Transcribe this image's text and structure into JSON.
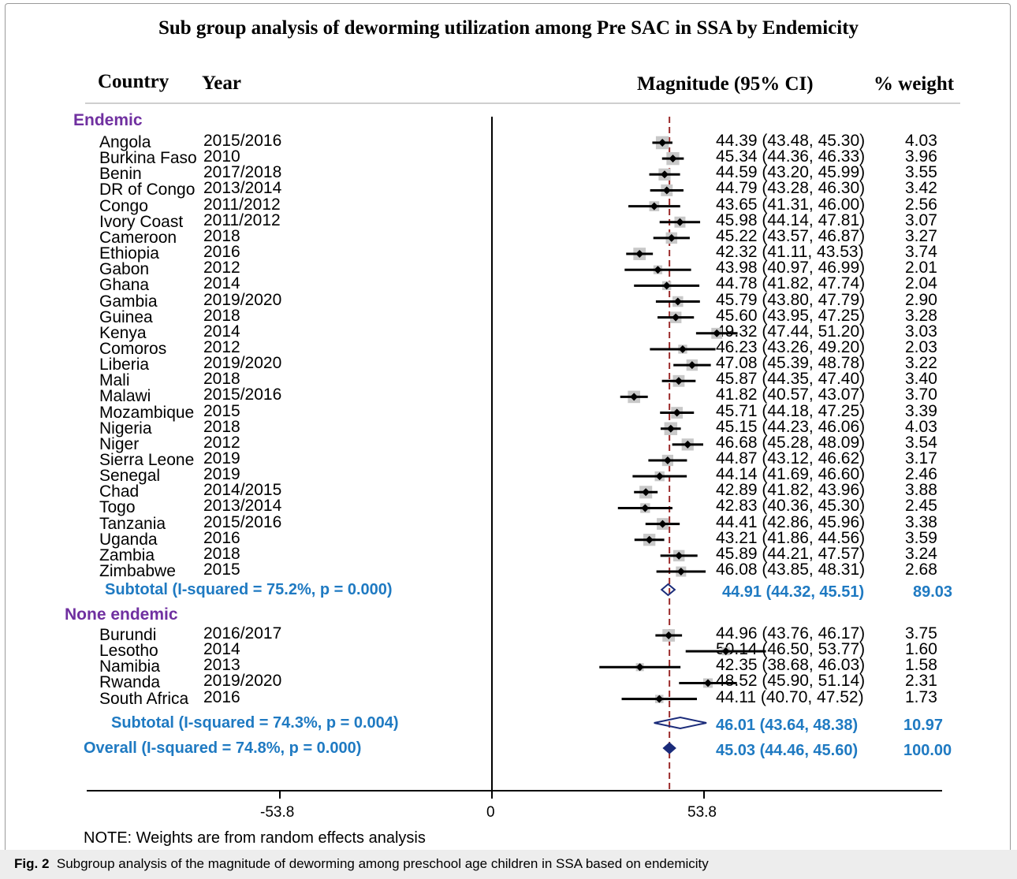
{
  "figure": {
    "title": "Sub group analysis of deworming utilization among Pre SAC in SSA by Endemicity",
    "headers": {
      "country": "Country",
      "year": "Year",
      "effect": "Magnitude (95% CI)",
      "weight": "% weight"
    },
    "note": "NOTE: Weights are from random effects analysis",
    "caption_label": "Fig. 2",
    "caption_text": "Subgroup analysis of the magnitude of deworming among preschool age children in SSA based on endemicity",
    "x_ticks": [
      "-53.8",
      "0",
      "53.8"
    ],
    "overall_label": "Overall  (I-squared = 74.8%, p = 0.000)",
    "overall_ci": "45.03 (44.46, 45.60)",
    "overall_weight": "100.00"
  },
  "chart_data": {
    "type": "forest",
    "xlim": [
      -110,
      110
    ],
    "reference_line": 0,
    "pooled_line": 45.03,
    "groups": [
      {
        "name": "Endemic",
        "studies": [
          {
            "country": "Angola",
            "year": "2015/2016",
            "est": 44.39,
            "lo": 43.48,
            "hi": 45.3,
            "ci": "44.39 (43.48, 45.30)",
            "weight": "4.03"
          },
          {
            "country": "Burkina Faso",
            "year": "2010",
            "est": 45.34,
            "lo": 44.36,
            "hi": 46.33,
            "ci": "45.34 (44.36, 46.33)",
            "weight": "3.96"
          },
          {
            "country": "Benin",
            "year": "2017/2018",
            "est": 44.59,
            "lo": 43.2,
            "hi": 45.99,
            "ci": "44.59 (43.20, 45.99)",
            "weight": "3.55"
          },
          {
            "country": "DR of Congo",
            "year": "2013/2014",
            "est": 44.79,
            "lo": 43.28,
            "hi": 46.3,
            "ci": "44.79 (43.28, 46.30)",
            "weight": "3.42"
          },
          {
            "country": "Congo",
            "year": "2011/2012",
            "est": 43.65,
            "lo": 41.31,
            "hi": 46.0,
            "ci": "43.65 (41.31, 46.00)",
            "weight": "2.56"
          },
          {
            "country": "Ivory Coast",
            "year": "2011/2012",
            "est": 45.98,
            "lo": 44.14,
            "hi": 47.81,
            "ci": "45.98 (44.14, 47.81)",
            "weight": "3.07"
          },
          {
            "country": "Cameroon",
            "year": "2018",
            "est": 45.22,
            "lo": 43.57,
            "hi": 46.87,
            "ci": "45.22 (43.57, 46.87)",
            "weight": "3.27"
          },
          {
            "country": "Ethiopia",
            "year": "2016",
            "est": 42.32,
            "lo": 41.11,
            "hi": 43.53,
            "ci": "42.32 (41.11, 43.53)",
            "weight": "3.74"
          },
          {
            "country": "Gabon",
            "year": "2012",
            "est": 43.98,
            "lo": 40.97,
            "hi": 46.99,
            "ci": "43.98 (40.97, 46.99)",
            "weight": "2.01"
          },
          {
            "country": "Ghana",
            "year": "2014",
            "est": 44.78,
            "lo": 41.82,
            "hi": 47.74,
            "ci": "44.78 (41.82, 47.74)",
            "weight": "2.04"
          },
          {
            "country": "Gambia",
            "year": "2019/2020",
            "est": 45.79,
            "lo": 43.8,
            "hi": 47.79,
            "ci": "45.79 (43.80, 47.79)",
            "weight": "2.90"
          },
          {
            "country": "Guinea",
            "year": "2018",
            "est": 45.6,
            "lo": 43.95,
            "hi": 47.25,
            "ci": "45.60 (43.95, 47.25)",
            "weight": "3.28"
          },
          {
            "country": "Kenya",
            "year": "2014",
            "est": 49.32,
            "lo": 47.44,
            "hi": 51.2,
            "ci": "49.32 (47.44, 51.20)",
            "weight": "3.03"
          },
          {
            "country": "Comoros",
            "year": "2012",
            "est": 46.23,
            "lo": 43.26,
            "hi": 49.2,
            "ci": "46.23 (43.26, 49.20)",
            "weight": "2.03"
          },
          {
            "country": "Liberia",
            "year": "2019/2020",
            "est": 47.08,
            "lo": 45.39,
            "hi": 48.78,
            "ci": "47.08 (45.39, 48.78)",
            "weight": "3.22"
          },
          {
            "country": "Mali",
            "year": "2018",
            "est": 45.87,
            "lo": 44.35,
            "hi": 47.4,
            "ci": "45.87 (44.35, 47.40)",
            "weight": "3.40"
          },
          {
            "country": "Malawi",
            "year": "2015/2016",
            "est": 41.82,
            "lo": 40.57,
            "hi": 43.07,
            "ci": "41.82 (40.57, 43.07)",
            "weight": "3.70"
          },
          {
            "country": "Mozambique",
            "year": "2015",
            "est": 45.71,
            "lo": 44.18,
            "hi": 47.25,
            "ci": "45.71 (44.18, 47.25)",
            "weight": "3.39"
          },
          {
            "country": "Nigeria",
            "year": "2018",
            "est": 45.15,
            "lo": 44.23,
            "hi": 46.06,
            "ci": "45.15 (44.23, 46.06)",
            "weight": "4.03"
          },
          {
            "country": "Niger",
            "year": "2012",
            "est": 46.68,
            "lo": 45.28,
            "hi": 48.09,
            "ci": "46.68 (45.28, 48.09)",
            "weight": "3.54"
          },
          {
            "country": "Sierra Leone",
            "year": "2019",
            "est": 44.87,
            "lo": 43.12,
            "hi": 46.62,
            "ci": "44.87 (43.12, 46.62)",
            "weight": "3.17"
          },
          {
            "country": "Senegal",
            "year": "2019",
            "est": 44.14,
            "lo": 41.69,
            "hi": 46.6,
            "ci": "44.14 (41.69, 46.60)",
            "weight": "2.46"
          },
          {
            "country": "Chad",
            "year": "2014/2015",
            "est": 42.89,
            "lo": 41.82,
            "hi": 43.96,
            "ci": "42.89 (41.82, 43.96)",
            "weight": "3.88"
          },
          {
            "country": "Togo",
            "year": "2013/2014",
            "est": 42.83,
            "lo": 40.36,
            "hi": 45.3,
            "ci": "42.83 (40.36, 45.30)",
            "weight": "2.45"
          },
          {
            "country": "Tanzania",
            "year": "2015/2016",
            "est": 44.41,
            "lo": 42.86,
            "hi": 45.96,
            "ci": "44.41 (42.86, 45.96)",
            "weight": "3.38"
          },
          {
            "country": "Uganda",
            "year": "2016",
            "est": 43.21,
            "lo": 41.86,
            "hi": 44.56,
            "ci": "43.21 (41.86, 44.56)",
            "weight": "3.59"
          },
          {
            "country": "Zambia",
            "year": "2018",
            "est": 45.89,
            "lo": 44.21,
            "hi": 47.57,
            "ci": "45.89 (44.21, 47.57)",
            "weight": "3.24"
          },
          {
            "country": "Zimbabwe",
            "year": "2015",
            "est": 46.08,
            "lo": 43.85,
            "hi": 48.31,
            "ci": "46.08 (43.85, 48.31)",
            "weight": "2.68"
          }
        ],
        "subtotal": {
          "label": "Subtotal  (I-squared = 75.2%, p = 0.000)",
          "est": 44.91,
          "lo": 44.32,
          "hi": 45.51,
          "ci": "44.91 (44.32, 45.51)",
          "weight": "89.03"
        }
      },
      {
        "name": "None endemic",
        "studies": [
          {
            "country": "Burundi",
            "year": "2016/2017",
            "est": 44.96,
            "lo": 43.76,
            "hi": 46.17,
            "ci": "44.96 (43.76, 46.17)",
            "weight": "3.75"
          },
          {
            "country": "Lesotho",
            "year": "2014",
            "est": 50.14,
            "lo": 46.5,
            "hi": 53.77,
            "ci": "50.14 (46.50, 53.77)",
            "weight": "1.60"
          },
          {
            "country": "Namibia",
            "year": "2013",
            "est": 42.35,
            "lo": 38.68,
            "hi": 46.03,
            "ci": "42.35 (38.68, 46.03)",
            "weight": "1.58"
          },
          {
            "country": "Rwanda",
            "year": "2019/2020",
            "est": 48.52,
            "lo": 45.9,
            "hi": 51.14,
            "ci": "48.52 (45.90, 51.14)",
            "weight": "2.31"
          },
          {
            "country": "South Africa",
            "year": "2016",
            "est": 44.11,
            "lo": 40.7,
            "hi": 47.52,
            "ci": "44.11 (40.70, 47.52)",
            "weight": "1.73"
          }
        ],
        "subtotal": {
          "label": "Subtotal  (I-squared = 74.3%, p = 0.004)",
          "est": 46.01,
          "lo": 43.64,
          "hi": 48.38,
          "ci": "46.01 (43.64, 48.38)",
          "weight": "10.97"
        }
      }
    ],
    "overall": {
      "est": 45.03,
      "lo": 44.46,
      "hi": 45.6
    }
  }
}
